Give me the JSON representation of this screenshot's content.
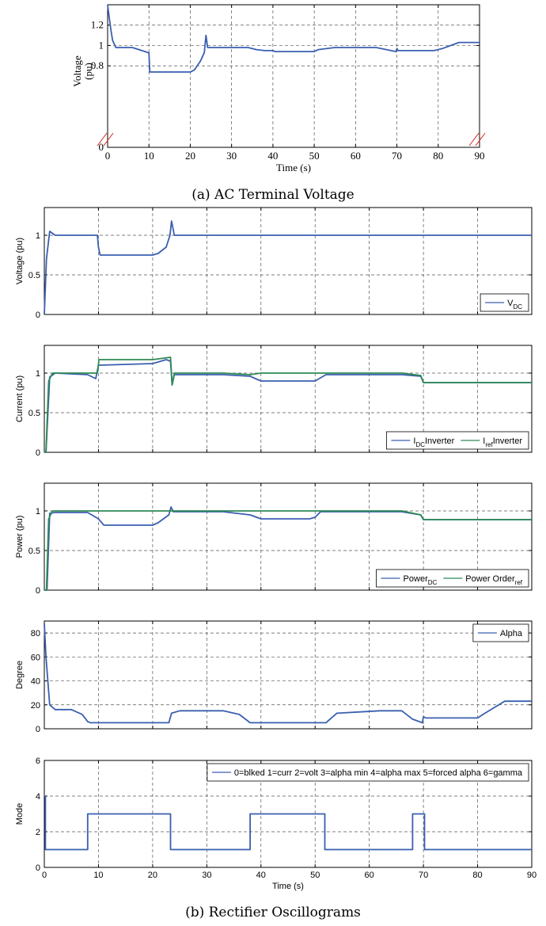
{
  "figure": {
    "caption_a": "(a) AC Terminal Voltage",
    "caption_b": "(b) Rectifier Oscillograms"
  },
  "chart_data": [
    {
      "id": "ac_terminal_voltage",
      "type": "line",
      "xlabel": "Time (s)",
      "ylabel_lines": [
        "Voltage",
        "(pu)"
      ],
      "xlim": [
        0,
        90
      ],
      "ylim": [
        0,
        1.4
      ],
      "grid": true,
      "broken_axis": true,
      "x_ticks": [
        "0",
        "10",
        "20",
        "30",
        "40",
        "50",
        "60",
        "70",
        "80",
        "90"
      ],
      "y_ticks": [
        "0",
        "0.8",
        "1",
        "1.2"
      ],
      "series": [
        {
          "color": "#3a5fb0",
          "x": [
            0,
            0.3,
            0.8,
            1.2,
            2,
            6,
            9.8,
            10,
            10.2,
            15,
            20,
            21,
            22.5,
            23.4,
            23.8,
            24.2,
            24.8,
            30,
            34,
            36,
            38,
            40,
            40.5,
            41,
            49,
            50,
            51,
            55,
            60,
            65,
            69.8,
            70,
            70.3,
            71,
            75,
            79,
            81,
            85,
            90
          ],
          "y": [
            1.4,
            1.3,
            1.15,
            1.05,
            0.98,
            0.98,
            0.93,
            0.93,
            0.74,
            0.74,
            0.74,
            0.76,
            0.85,
            0.93,
            1.1,
            0.98,
            0.98,
            0.98,
            0.98,
            0.96,
            0.95,
            0.95,
            0.94,
            0.94,
            0.94,
            0.94,
            0.96,
            0.98,
            0.98,
            0.98,
            0.94,
            0.97,
            0.95,
            0.95,
            0.95,
            0.95,
            0.97,
            1.03,
            1.03
          ]
        }
      ]
    },
    {
      "id": "dc_voltage",
      "type": "line",
      "ylabel": "Voltage (pu)",
      "xlim": [
        0,
        90
      ],
      "ylim": [
        0,
        1.35
      ],
      "grid": true,
      "y_ticks": [
        "0",
        "0.5",
        "1"
      ],
      "legend": {
        "position": "bottom-right",
        "entries": [
          {
            "name": "V",
            "sub": "DC"
          }
        ]
      },
      "series": [
        {
          "name": "VDC",
          "color": "#3a5fb0",
          "x": [
            0,
            0.4,
            1,
            2,
            3,
            9.8,
            10,
            10.3,
            20,
            21,
            22.5,
            23.2,
            23.5,
            24,
            30,
            90
          ],
          "y": [
            0,
            0.7,
            1.05,
            1.0,
            1.0,
            1.0,
            0.85,
            0.75,
            0.75,
            0.77,
            0.85,
            1.0,
            1.18,
            1.0,
            1.0,
            1.0
          ]
        }
      ]
    },
    {
      "id": "dc_current",
      "type": "line",
      "ylabel": "Current (pu)",
      "xlim": [
        0,
        90
      ],
      "ylim": [
        0,
        1.35
      ],
      "grid": true,
      "y_ticks": [
        "0",
        "0.5",
        "1"
      ],
      "legend": {
        "position": "bottom-right",
        "entries": [
          {
            "name": "I",
            "sub": "DC",
            "suffix": " Inverter"
          },
          {
            "name": "I",
            "sub": "ref",
            "suffix": " Inverter"
          }
        ]
      },
      "series": [
        {
          "name": "IDC Inverter",
          "color": "#3a5fb0",
          "x": [
            0,
            0.3,
            1,
            2,
            8,
            9.5,
            10,
            10.3,
            20,
            22.5,
            23.3,
            23.6,
            24,
            33,
            38,
            40,
            50,
            52,
            66,
            69.5,
            70,
            70.5,
            90
          ],
          "y": [
            0,
            0,
            0.95,
            1.0,
            0.98,
            0.93,
            1.1,
            1.1,
            1.12,
            1.17,
            1.15,
            0.85,
            0.98,
            0.98,
            0.96,
            0.9,
            0.9,
            0.98,
            0.98,
            0.96,
            0.88,
            0.88,
            0.88
          ]
        },
        {
          "name": "Iref Inverter",
          "color": "#2e8a54",
          "x": [
            0,
            0.3,
            0.8,
            1.5,
            9.8,
            10.1,
            20,
            23.3,
            23.6,
            24,
            33,
            38,
            40,
            50,
            52,
            66,
            69.5,
            70,
            70.5,
            90
          ],
          "y": [
            0,
            0,
            0.9,
            1.0,
            1.0,
            1.17,
            1.17,
            1.2,
            0.85,
            1.0,
            1.0,
            0.98,
            1.0,
            1.0,
            1.0,
            1.0,
            0.97,
            0.88,
            0.88,
            0.88
          ]
        }
      ]
    },
    {
      "id": "dc_power",
      "type": "line",
      "ylabel": "Power (pu)",
      "xlim": [
        0,
        90
      ],
      "ylim": [
        0,
        1.35
      ],
      "grid": true,
      "y_ticks": [
        "0",
        "0.5",
        "1"
      ],
      "legend": {
        "position": "bottom-right",
        "entries": [
          {
            "name": "Power",
            "sub": "DC"
          },
          {
            "name": "Power Order",
            "sub": "ref"
          }
        ]
      },
      "series": [
        {
          "name": "PowerDC",
          "color": "#3a5fb0",
          "x": [
            0,
            0.5,
            1,
            2,
            8,
            10,
            11,
            20,
            21,
            23,
            23.4,
            23.8,
            33,
            38,
            40,
            49,
            50,
            51,
            66,
            69.5,
            70,
            70.5,
            90
          ],
          "y": [
            0,
            0,
            0.97,
            0.98,
            0.98,
            0.9,
            0.82,
            0.82,
            0.85,
            0.95,
            1.05,
            0.99,
            0.99,
            0.95,
            0.9,
            0.9,
            0.92,
            0.99,
            0.99,
            0.95,
            0.89,
            0.89,
            0.89
          ]
        },
        {
          "name": "Power Orderref",
          "color": "#2e8a54",
          "x": [
            0,
            0.4,
            0.8,
            1.5,
            66,
            69.5,
            70,
            70.5,
            90
          ],
          "y": [
            0,
            0,
            0.9,
            1.0,
            1.0,
            0.95,
            0.89,
            0.89,
            0.89
          ]
        }
      ]
    },
    {
      "id": "alpha",
      "type": "line",
      "ylabel": "Degree",
      "xlim": [
        0,
        90
      ],
      "ylim": [
        0,
        90
      ],
      "grid": true,
      "y_ticks": [
        "0",
        "20",
        "40",
        "60",
        "80"
      ],
      "legend": {
        "position": "top-right",
        "entries": [
          {
            "name": "Alpha"
          }
        ]
      },
      "series": [
        {
          "name": "Alpha",
          "color": "#3a5fb0",
          "x": [
            0,
            0.3,
            1,
            2,
            5,
            7,
            8,
            8.5,
            23,
            23.5,
            25,
            33,
            36,
            38,
            52,
            54,
            62,
            66,
            68,
            69.8,
            70,
            70.5,
            80,
            81,
            85,
            90
          ],
          "y": [
            88,
            60,
            20,
            16,
            16,
            12,
            6,
            5,
            5,
            13,
            15,
            15,
            12,
            5,
            5,
            13,
            15,
            15,
            8,
            5,
            10,
            9,
            9,
            12,
            23,
            23
          ]
        }
      ]
    },
    {
      "id": "mode",
      "type": "line",
      "xlabel": "Time (s)",
      "ylabel": "Mode",
      "xlim": [
        0,
        90
      ],
      "ylim": [
        0,
        6
      ],
      "grid": true,
      "x_ticks": [
        "0",
        "10",
        "20",
        "30",
        "40",
        "50",
        "60",
        "70",
        "80",
        "90"
      ],
      "y_ticks": [
        "0",
        "2",
        "4",
        "6"
      ],
      "legend": {
        "position": "top-right",
        "entries": [
          {
            "name": "0=blked  1=curr 2=volt 3=alpha min 4=alpha max 5=forced alpha 6=gamma"
          }
        ]
      },
      "series": [
        {
          "name": "Mode",
          "color": "#3a5fb0",
          "x": [
            0,
            0.2,
            0.2,
            8,
            8,
            23.3,
            23.3,
            38,
            38,
            51.8,
            51.8,
            52.3,
            52.3,
            68,
            68,
            70.2,
            70.2,
            90
          ],
          "y": [
            4,
            4,
            1,
            1,
            3,
            3,
            1,
            1,
            3,
            3,
            1,
            1,
            1,
            1,
            3,
            3,
            1,
            1
          ]
        }
      ]
    }
  ]
}
